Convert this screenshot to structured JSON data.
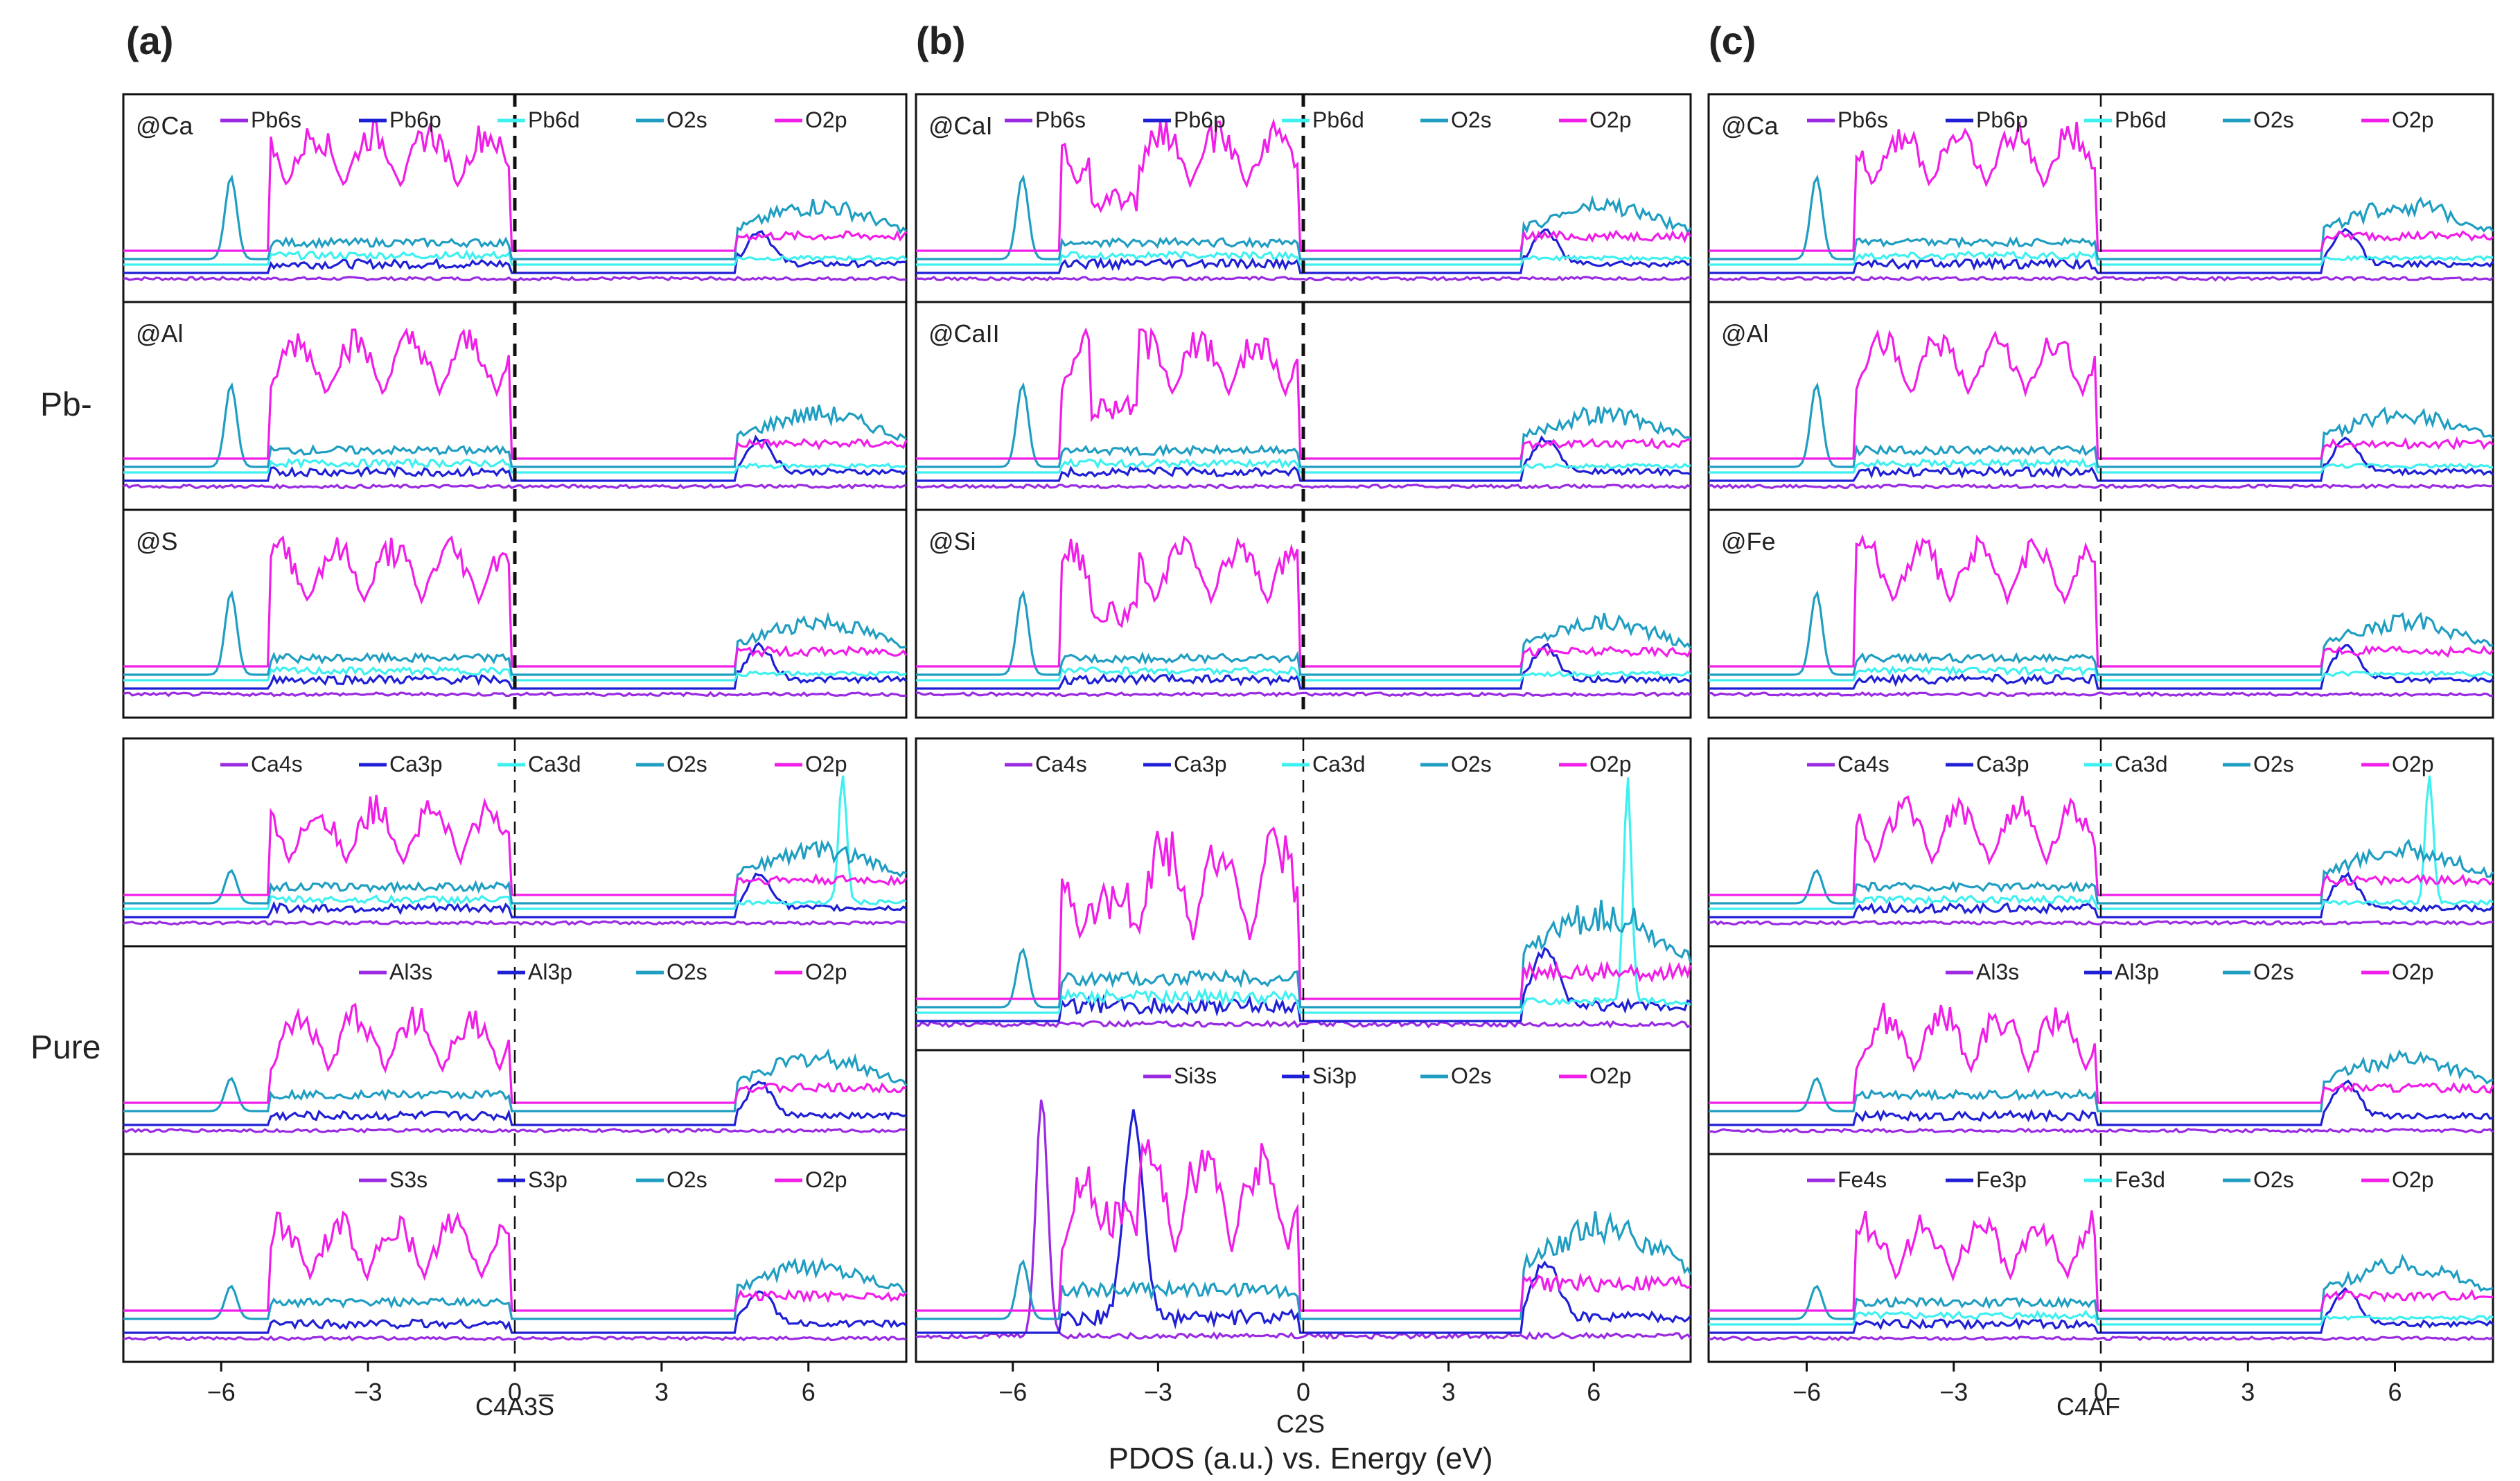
{
  "figure": {
    "column_labels": [
      "(a)",
      "(b)",
      "(c)"
    ],
    "row_labels": {
      "pb": "Pb-",
      "pure": "Pure"
    },
    "xlabels": [
      "C4A3S̅",
      "C2S",
      "C4AF"
    ],
    "bottom_caption": "PDOS (a.u.) vs. Energy (eV)",
    "x_ticks": [
      -6,
      -3,
      0,
      3,
      6
    ],
    "x_tick_labels": [
      "−6",
      "−3",
      "0",
      "3",
      "6"
    ]
  },
  "colors": {
    "s": "#9a2be2",
    "p": "#1f1fd6",
    "d": "#3ff0f0",
    "O2s": "#1f9ec2",
    "O2p": "#f01ee8"
  },
  "chart_data": [
    {
      "type": "line",
      "column": "a",
      "group": "pb",
      "title": "@Ca",
      "legend": [
        [
          "Pb6s",
          "s"
        ],
        [
          "Pb6p",
          "p"
        ],
        [
          "Pb6d",
          "d"
        ],
        [
          "O2s",
          "O2s"
        ],
        [
          "O2p",
          "O2p"
        ]
      ],
      "xlim": [
        -8,
        8
      ],
      "ylim": [
        0,
        10
      ]
    },
    {
      "type": "line",
      "column": "a",
      "group": "pb",
      "title": "@Al",
      "legend": [],
      "xlim": [
        -8,
        8
      ],
      "ylim": [
        0,
        10
      ]
    },
    {
      "type": "line",
      "column": "a",
      "group": "pb",
      "title": "@S",
      "legend": [],
      "xlim": [
        -8,
        8
      ],
      "ylim": [
        0,
        10
      ]
    },
    {
      "type": "line",
      "column": "a",
      "group": "pure",
      "title": "",
      "legend": [
        [
          "Ca4s",
          "s"
        ],
        [
          "Ca3p",
          "p"
        ],
        [
          "Ca3d",
          "d"
        ],
        [
          "O2s",
          "O2s"
        ],
        [
          "O2p",
          "O2p"
        ]
      ],
      "xlim": [
        -8,
        8
      ],
      "ylim": [
        0,
        10
      ]
    },
    {
      "type": "line",
      "column": "a",
      "group": "pure",
      "title": "",
      "legend": [
        [
          "Al3s",
          "s"
        ],
        [
          "Al3p",
          "p"
        ],
        [
          "O2s",
          "O2s"
        ],
        [
          "O2p",
          "O2p"
        ]
      ],
      "xlim": [
        -8,
        8
      ],
      "ylim": [
        0,
        10
      ]
    },
    {
      "type": "line",
      "column": "a",
      "group": "pure",
      "title": "",
      "legend": [
        [
          "S3s",
          "s"
        ],
        [
          "S3p",
          "p"
        ],
        [
          "O2s",
          "O2s"
        ],
        [
          "O2p",
          "O2p"
        ]
      ],
      "xlim": [
        -8,
        8
      ],
      "ylim": [
        0,
        10
      ]
    },
    {
      "type": "line",
      "column": "b",
      "group": "pb",
      "title": "@CaI",
      "legend": [
        [
          "Pb6s",
          "s"
        ],
        [
          "Pb6p",
          "p"
        ],
        [
          "Pb6d",
          "d"
        ],
        [
          "O2s",
          "O2s"
        ],
        [
          "O2p",
          "O2p"
        ]
      ],
      "xlim": [
        -8,
        8
      ],
      "ylim": [
        0,
        10
      ]
    },
    {
      "type": "line",
      "column": "b",
      "group": "pb",
      "title": "@CaII",
      "legend": [],
      "xlim": [
        -8,
        8
      ],
      "ylim": [
        0,
        10
      ]
    },
    {
      "type": "line",
      "column": "b",
      "group": "pb",
      "title": "@Si",
      "legend": [],
      "xlim": [
        -8,
        8
      ],
      "ylim": [
        0,
        10
      ]
    },
    {
      "type": "line",
      "column": "b",
      "group": "pure",
      "title": "",
      "legend": [
        [
          "Ca4s",
          "s"
        ],
        [
          "Ca3p",
          "p"
        ],
        [
          "Ca3d",
          "d"
        ],
        [
          "O2s",
          "O2s"
        ],
        [
          "O2p",
          "O2p"
        ]
      ],
      "xlim": [
        -8,
        8
      ],
      "ylim": [
        0,
        10
      ]
    },
    {
      "type": "line",
      "column": "b",
      "group": "pure",
      "title": "",
      "legend": [
        [
          "Si3s",
          "s"
        ],
        [
          "Si3p",
          "p"
        ],
        [
          "O2s",
          "O2s"
        ],
        [
          "O2p",
          "O2p"
        ]
      ],
      "xlim": [
        -8,
        8
      ],
      "ylim": [
        0,
        10
      ]
    },
    {
      "type": "line",
      "column": "c",
      "group": "pb",
      "title": "@Ca",
      "legend": [
        [
          "Pb6s",
          "s"
        ],
        [
          "Pb6p",
          "p"
        ],
        [
          "Pb6d",
          "d"
        ],
        [
          "O2s",
          "O2s"
        ],
        [
          "O2p",
          "O2p"
        ]
      ],
      "xlim": [
        -8,
        8
      ],
      "ylim": [
        0,
        10
      ]
    },
    {
      "type": "line",
      "column": "c",
      "group": "pb",
      "title": "@Al",
      "legend": [],
      "xlim": [
        -8,
        8
      ],
      "ylim": [
        0,
        10
      ]
    },
    {
      "type": "line",
      "column": "c",
      "group": "pb",
      "title": "@Fe",
      "legend": [],
      "xlim": [
        -8,
        8
      ],
      "ylim": [
        0,
        10
      ]
    },
    {
      "type": "line",
      "column": "c",
      "group": "pure",
      "title": "",
      "legend": [
        [
          "Ca4s",
          "s"
        ],
        [
          "Ca3p",
          "p"
        ],
        [
          "Ca3d",
          "d"
        ],
        [
          "O2s",
          "O2s"
        ],
        [
          "O2p",
          "O2p"
        ]
      ],
      "xlim": [
        -8,
        8
      ],
      "ylim": [
        0,
        10
      ]
    },
    {
      "type": "line",
      "column": "c",
      "group": "pure",
      "title": "",
      "legend": [
        [
          "Al3s",
          "s"
        ],
        [
          "Al3p",
          "p"
        ],
        [
          "O2s",
          "O2s"
        ],
        [
          "O2p",
          "O2p"
        ]
      ],
      "xlim": [
        -8,
        8
      ],
      "ylim": [
        0,
        10
      ]
    },
    {
      "type": "line",
      "column": "c",
      "group": "pure",
      "title": "",
      "legend": [
        [
          "Fe4s",
          "s"
        ],
        [
          "Fe3p",
          "p"
        ],
        [
          "Fe3d",
          "d"
        ],
        [
          "O2s",
          "O2s"
        ],
        [
          "O2p",
          "O2p"
        ]
      ],
      "xlim": [
        -8,
        8
      ],
      "ylim": [
        0,
        10
      ]
    }
  ]
}
